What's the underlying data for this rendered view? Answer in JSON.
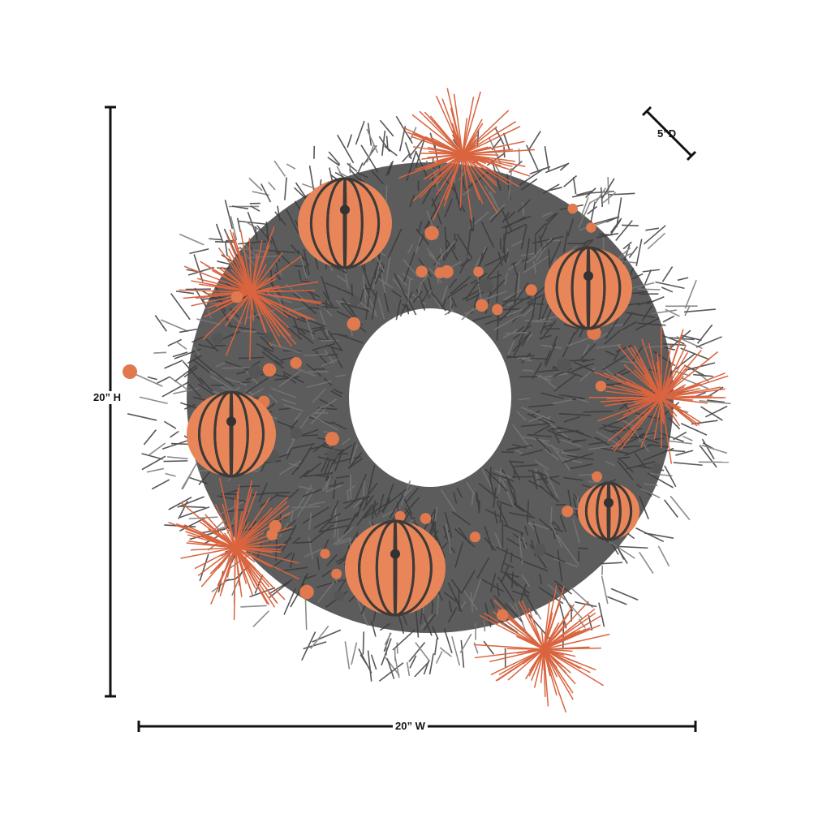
{
  "product": {
    "height_label": "20” H",
    "width_label": "20” W",
    "depth_label": "5”D"
  },
  "colors": {
    "needles": "#3a3a3a",
    "pumpkin": "#e8865a",
    "spray": "#d9643f",
    "berry": "#e07a4e",
    "dimension_line": "#111111"
  }
}
